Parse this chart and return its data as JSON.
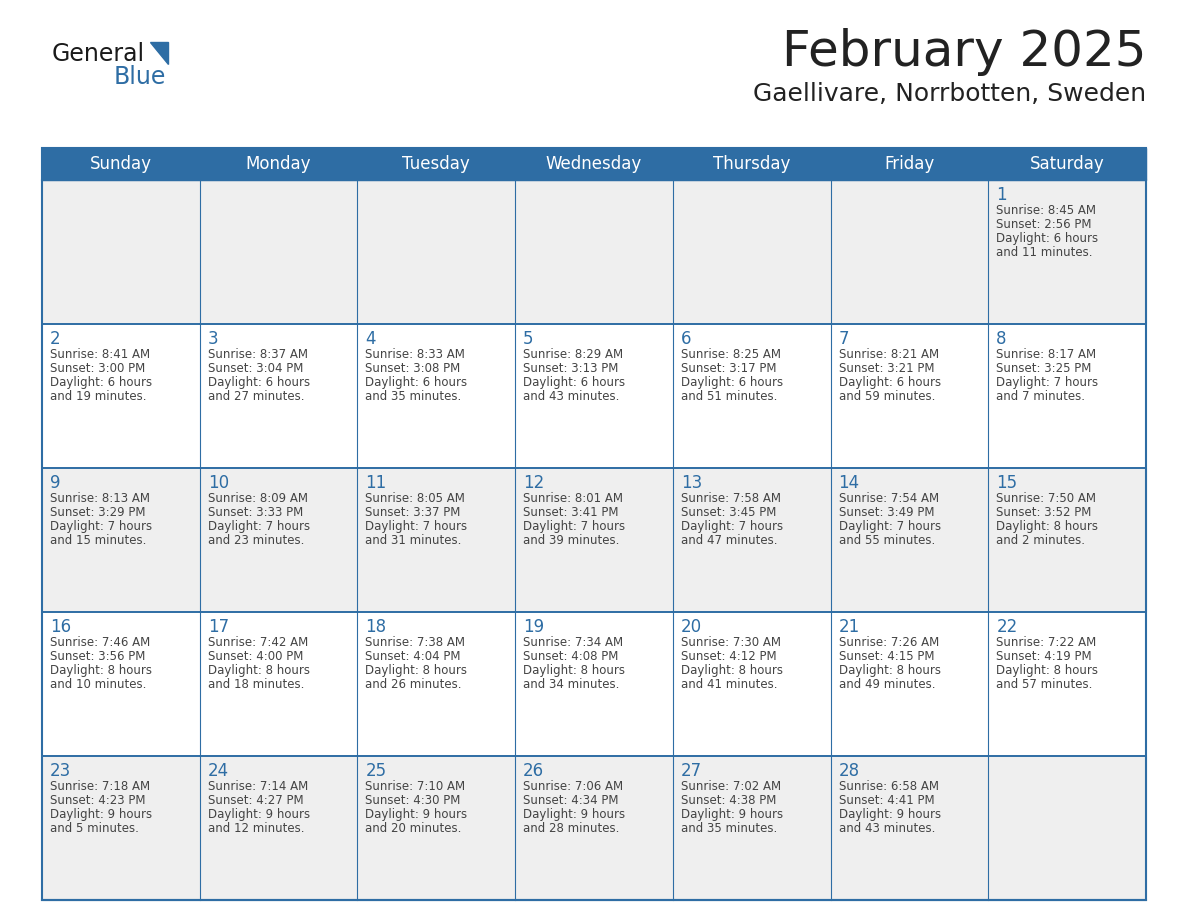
{
  "title": "February 2025",
  "subtitle": "Gaellivare, Norrbotten, Sweden",
  "days_of_week": [
    "Sunday",
    "Monday",
    "Tuesday",
    "Wednesday",
    "Thursday",
    "Friday",
    "Saturday"
  ],
  "header_bg": "#2E6DA4",
  "header_text": "#FFFFFF",
  "cell_bg_light": "#EFEFEF",
  "cell_bg_white": "#FFFFFF",
  "separator_color": "#2E6DA4",
  "day_num_color": "#2E6DA4",
  "text_color": "#444444",
  "title_color": "#222222",
  "calendar": [
    [
      null,
      null,
      null,
      null,
      null,
      null,
      {
        "day": "1",
        "sunrise": "8:45 AM",
        "sunset": "2:56 PM",
        "daylight1": "6 hours",
        "daylight2": "and 11 minutes."
      }
    ],
    [
      {
        "day": "2",
        "sunrise": "8:41 AM",
        "sunset": "3:00 PM",
        "daylight1": "6 hours",
        "daylight2": "and 19 minutes."
      },
      {
        "day": "3",
        "sunrise": "8:37 AM",
        "sunset": "3:04 PM",
        "daylight1": "6 hours",
        "daylight2": "and 27 minutes."
      },
      {
        "day": "4",
        "sunrise": "8:33 AM",
        "sunset": "3:08 PM",
        "daylight1": "6 hours",
        "daylight2": "and 35 minutes."
      },
      {
        "day": "5",
        "sunrise": "8:29 AM",
        "sunset": "3:13 PM",
        "daylight1": "6 hours",
        "daylight2": "and 43 minutes."
      },
      {
        "day": "6",
        "sunrise": "8:25 AM",
        "sunset": "3:17 PM",
        "daylight1": "6 hours",
        "daylight2": "and 51 minutes."
      },
      {
        "day": "7",
        "sunrise": "8:21 AM",
        "sunset": "3:21 PM",
        "daylight1": "6 hours",
        "daylight2": "and 59 minutes."
      },
      {
        "day": "8",
        "sunrise": "8:17 AM",
        "sunset": "3:25 PM",
        "daylight1": "7 hours",
        "daylight2": "and 7 minutes."
      }
    ],
    [
      {
        "day": "9",
        "sunrise": "8:13 AM",
        "sunset": "3:29 PM",
        "daylight1": "7 hours",
        "daylight2": "and 15 minutes."
      },
      {
        "day": "10",
        "sunrise": "8:09 AM",
        "sunset": "3:33 PM",
        "daylight1": "7 hours",
        "daylight2": "and 23 minutes."
      },
      {
        "day": "11",
        "sunrise": "8:05 AM",
        "sunset": "3:37 PM",
        "daylight1": "7 hours",
        "daylight2": "and 31 minutes."
      },
      {
        "day": "12",
        "sunrise": "8:01 AM",
        "sunset": "3:41 PM",
        "daylight1": "7 hours",
        "daylight2": "and 39 minutes."
      },
      {
        "day": "13",
        "sunrise": "7:58 AM",
        "sunset": "3:45 PM",
        "daylight1": "7 hours",
        "daylight2": "and 47 minutes."
      },
      {
        "day": "14",
        "sunrise": "7:54 AM",
        "sunset": "3:49 PM",
        "daylight1": "7 hours",
        "daylight2": "and 55 minutes."
      },
      {
        "day": "15",
        "sunrise": "7:50 AM",
        "sunset": "3:52 PM",
        "daylight1": "8 hours",
        "daylight2": "and 2 minutes."
      }
    ],
    [
      {
        "day": "16",
        "sunrise": "7:46 AM",
        "sunset": "3:56 PM",
        "daylight1": "8 hours",
        "daylight2": "and 10 minutes."
      },
      {
        "day": "17",
        "sunrise": "7:42 AM",
        "sunset": "4:00 PM",
        "daylight1": "8 hours",
        "daylight2": "and 18 minutes."
      },
      {
        "day": "18",
        "sunrise": "7:38 AM",
        "sunset": "4:04 PM",
        "daylight1": "8 hours",
        "daylight2": "and 26 minutes."
      },
      {
        "day": "19",
        "sunrise": "7:34 AM",
        "sunset": "4:08 PM",
        "daylight1": "8 hours",
        "daylight2": "and 34 minutes."
      },
      {
        "day": "20",
        "sunrise": "7:30 AM",
        "sunset": "4:12 PM",
        "daylight1": "8 hours",
        "daylight2": "and 41 minutes."
      },
      {
        "day": "21",
        "sunrise": "7:26 AM",
        "sunset": "4:15 PM",
        "daylight1": "8 hours",
        "daylight2": "and 49 minutes."
      },
      {
        "day": "22",
        "sunrise": "7:22 AM",
        "sunset": "4:19 PM",
        "daylight1": "8 hours",
        "daylight2": "and 57 minutes."
      }
    ],
    [
      {
        "day": "23",
        "sunrise": "7:18 AM",
        "sunset": "4:23 PM",
        "daylight1": "9 hours",
        "daylight2": "and 5 minutes."
      },
      {
        "day": "24",
        "sunrise": "7:14 AM",
        "sunset": "4:27 PM",
        "daylight1": "9 hours",
        "daylight2": "and 12 minutes."
      },
      {
        "day": "25",
        "sunrise": "7:10 AM",
        "sunset": "4:30 PM",
        "daylight1": "9 hours",
        "daylight2": "and 20 minutes."
      },
      {
        "day": "26",
        "sunrise": "7:06 AM",
        "sunset": "4:34 PM",
        "daylight1": "9 hours",
        "daylight2": "and 28 minutes."
      },
      {
        "day": "27",
        "sunrise": "7:02 AM",
        "sunset": "4:38 PM",
        "daylight1": "9 hours",
        "daylight2": "and 35 minutes."
      },
      {
        "day": "28",
        "sunrise": "6:58 AM",
        "sunset": "4:41 PM",
        "daylight1": "9 hours",
        "daylight2": "and 43 minutes."
      },
      null
    ]
  ],
  "logo_general_color": "#1a1a1a",
  "logo_blue_color": "#2E6DA4",
  "logo_triangle_color": "#2E6DA4",
  "figwidth": 11.88,
  "figheight": 9.18,
  "dpi": 100
}
